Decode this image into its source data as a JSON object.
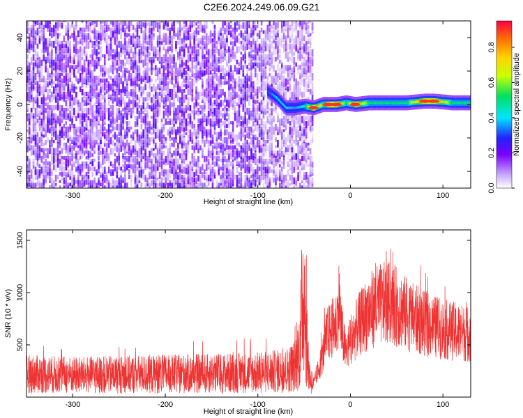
{
  "title": "C2E6.2024.249.06.09.G21",
  "chart_data": [
    {
      "type": "heatmap",
      "xlabel": "Height of straight line (km)",
      "ylabel": "Frequency (Hz)",
      "xlim": [
        -350,
        130
      ],
      "ylim": [
        -50,
        50
      ],
      "x_ticks": [
        -300,
        -200,
        -100,
        0,
        100
      ],
      "y_ticks": [
        -40,
        -20,
        0,
        20,
        40
      ],
      "colorbar": {
        "label": "Normalized spectral amplitude",
        "range": [
          0,
          0.95
        ],
        "ticks": [
          0.0,
          0.2,
          0.4,
          0.6,
          0.8
        ]
      },
      "noise_region": {
        "x": [
          -350,
          -40
        ],
        "amplitude": [
          0.05,
          0.25
        ]
      },
      "signal_band": [
        {
          "x": -90,
          "freq": 8,
          "amplitude": 0.3
        },
        {
          "x": -80,
          "freq": 4,
          "amplitude": 0.4
        },
        {
          "x": -70,
          "freq": -2,
          "amplitude": 0.4
        },
        {
          "x": -60,
          "freq": -2,
          "amplitude": 0.35
        },
        {
          "x": -50,
          "freq": -1,
          "amplitude": 0.45
        },
        {
          "x": -40,
          "freq": -2,
          "amplitude": 0.9
        },
        {
          "x": -30,
          "freq": 0,
          "amplitude": 0.55
        },
        {
          "x": -25,
          "freq": 0,
          "amplitude": 0.9
        },
        {
          "x": -15,
          "freq": 0,
          "amplitude": 0.9
        },
        {
          "x": -5,
          "freq": 1,
          "amplitude": 0.5
        },
        {
          "x": 5,
          "freq": 0,
          "amplitude": 0.9
        },
        {
          "x": 20,
          "freq": 1,
          "amplitude": 0.5
        },
        {
          "x": 40,
          "freq": 1,
          "amplitude": 0.5
        },
        {
          "x": 60,
          "freq": 1,
          "amplitude": 0.5
        },
        {
          "x": 80,
          "freq": 2,
          "amplitude": 0.9
        },
        {
          "x": 90,
          "freq": 2,
          "amplitude": 0.9
        },
        {
          "x": 110,
          "freq": 1,
          "amplitude": 0.5
        },
        {
          "x": 130,
          "freq": 1,
          "amplitude": 0.5
        }
      ]
    },
    {
      "type": "line",
      "xlabel": "Height of straight line (km)",
      "ylabel": "SNR (10 * v/v)",
      "xlim": [
        -350,
        130
      ],
      "ylim": [
        0,
        1600
      ],
      "x_ticks": [
        -300,
        -200,
        -100,
        0,
        100
      ],
      "y_ticks": [
        500,
        1000,
        1500
      ],
      "color": "#ee3333",
      "series": [
        {
          "x": [
            -350,
            -300,
            -250,
            -200,
            -150,
            -100,
            -70,
            -60,
            -55,
            -50,
            -48,
            -46,
            -44,
            -40,
            -35,
            -30,
            -25,
            -20,
            -15,
            -12,
            -10,
            -5,
            0,
            10,
            20,
            30,
            40,
            50,
            60,
            80,
            100,
            130
          ],
          "y": [
            220,
            210,
            215,
            220,
            225,
            235,
            250,
            300,
            450,
            1150,
            650,
            350,
            200,
            120,
            250,
            400,
            600,
            650,
            700,
            950,
            650,
            420,
            550,
            700,
            820,
            880,
            900,
            870,
            800,
            700,
            650,
            600
          ]
        }
      ]
    }
  ]
}
